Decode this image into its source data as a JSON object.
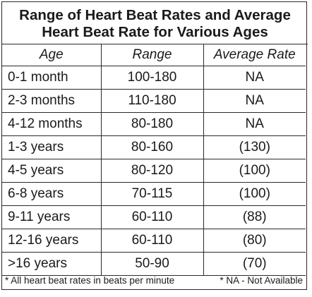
{
  "title": {
    "line1": "Range of Heart Beat Rates and Average",
    "line2": "Heart Beat Rate for Various Ages"
  },
  "table": {
    "headers": [
      "Age",
      "Range",
      "Average  Rate"
    ],
    "rows": [
      [
        "0-1 month",
        "100-180",
        "NA"
      ],
      [
        "2-3 months",
        "110-180",
        "NA"
      ],
      [
        "4-12 months",
        "80-180",
        "NA"
      ],
      [
        "1-3 years",
        "80-160",
        "(130)"
      ],
      [
        "4-5 years",
        "80-120",
        "(100)"
      ],
      [
        "6-8 years",
        "70-115",
        "(100)"
      ],
      [
        "9-11 years",
        "60-110",
        "(88)"
      ],
      [
        "12-16 years",
        "60-110",
        "(80)"
      ],
      [
        ">16 years",
        "50-90",
        "(70)"
      ]
    ]
  },
  "footer": {
    "left": "* All heart beat rates in beats per minute",
    "right": "* NA - Not Available"
  }
}
